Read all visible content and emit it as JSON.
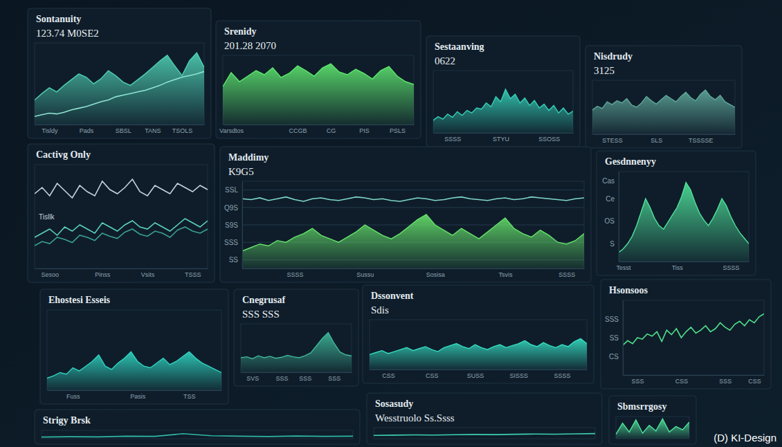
{
  "chart_data": [
    {
      "type": "area",
      "title": "Sontanuity",
      "subtitle": "123.74 M0SE2",
      "categories": [
        null,
        null,
        "Tisldy",
        null,
        null,
        null,
        null,
        "Pads",
        null,
        null,
        null,
        null,
        "SBSL",
        null,
        null,
        null,
        "TANS",
        null,
        null,
        null,
        "TSOLS",
        null,
        null,
        null
      ],
      "series": [
        {
          "type": "area",
          "color": "#4fd1b5",
          "values": [
            30,
            38,
            45,
            40,
            48,
            55,
            62,
            58,
            50,
            56,
            66,
            60,
            52,
            48,
            55,
            62,
            70,
            78,
            85,
            72,
            60,
            78,
            88,
            70
          ]
        },
        {
          "type": "line",
          "color": "#8fe3d3",
          "values": [
            10,
            12,
            14,
            13,
            15,
            18,
            20,
            22,
            25,
            28,
            30,
            34,
            36,
            38,
            40,
            42,
            45,
            48,
            52,
            55,
            58,
            60,
            62,
            65
          ]
        }
      ],
      "ylim": [
        0,
        100
      ],
      "tick_labels": "x"
    },
    {
      "type": "area",
      "title": "Srenidy",
      "subtitle": "201.28 2070",
      "categories": [
        null,
        "Varsdtos",
        null,
        null,
        null,
        null,
        null,
        null,
        null,
        "CCGB",
        null,
        null,
        null,
        "CG",
        null,
        null,
        null,
        "PIS",
        null,
        null,
        null,
        "PSLS",
        null,
        null
      ],
      "series": [
        {
          "color": "#5ee86f",
          "values": [
            55,
            75,
            62,
            70,
            78,
            72,
            82,
            68,
            74,
            85,
            78,
            70,
            82,
            88,
            76,
            72,
            80,
            74,
            66,
            78,
            84,
            70,
            62,
            58
          ]
        }
      ],
      "ylim": [
        0,
        100
      ],
      "tick_labels": "x"
    },
    {
      "type": "area",
      "title": "Sestaanving",
      "subtitle": "0622",
      "categories": [
        null,
        null,
        null,
        null,
        "SSSS",
        null,
        null,
        null,
        null,
        null,
        null,
        null,
        null,
        null,
        "STYU",
        null,
        null,
        null,
        null,
        null,
        null,
        null,
        null,
        null,
        "SSOSS",
        null,
        null,
        null,
        null,
        null
      ],
      "series": [
        {
          "color": "#35d0b8",
          "values": [
            20,
            26,
            22,
            30,
            25,
            34,
            28,
            36,
            32,
            40,
            38,
            48,
            42,
            58,
            50,
            70,
            55,
            62,
            48,
            56,
            44,
            52,
            40,
            46,
            36,
            44,
            32,
            40,
            30,
            35
          ]
        }
      ],
      "ylim": [
        0,
        100
      ],
      "tick_labels": "x"
    },
    {
      "type": "area",
      "title": "Nisdrudy",
      "subtitle": "3125",
      "categories": [
        null,
        null,
        null,
        null,
        "STESS",
        null,
        null,
        null,
        null,
        null,
        null,
        null,
        null,
        "SLS",
        null,
        null,
        null,
        null,
        null,
        null,
        null,
        null,
        "TSSSSE",
        null,
        null,
        null,
        null,
        null,
        null,
        null
      ],
      "series": [
        {
          "color": "#5fa89b",
          "values": [
            45,
            52,
            48,
            60,
            55,
            62,
            58,
            66,
            54,
            50,
            58,
            70,
            62,
            56,
            64,
            72,
            66,
            60,
            70,
            78,
            68,
            62,
            74,
            82,
            70,
            64,
            72,
            60,
            55,
            50
          ]
        }
      ],
      "ylim": [
        0,
        100
      ],
      "tick_labels": "x"
    },
    {
      "type": "line",
      "title": "Cactivg Only",
      "annotation": "Tisllk",
      "categories": [
        null,
        null,
        "Sesoo",
        null,
        null,
        null,
        null,
        null,
        null,
        "Pinss",
        null,
        null,
        null,
        null,
        null,
        "Vsits",
        null,
        null,
        null,
        null,
        null,
        "TSSS",
        null,
        null
      ],
      "series": [
        {
          "color": "#c7d3e0",
          "values": [
            72,
            78,
            70,
            82,
            75,
            68,
            80,
            74,
            70,
            84,
            76,
            72,
            78,
            86,
            74,
            70,
            80,
            76,
            72,
            82,
            78,
            74,
            80,
            76
          ]
        },
        {
          "color": "#5ad1c0",
          "values": [
            30,
            34,
            38,
            32,
            40,
            36,
            42,
            38,
            34,
            44,
            40,
            36,
            42,
            46,
            40,
            38,
            44,
            40,
            36,
            42,
            48,
            44,
            40,
            46
          ]
        },
        {
          "color": "#3b9f96",
          "values": [
            22,
            26,
            24,
            30,
            28,
            25,
            32,
            30,
            27,
            34,
            31,
            29,
            35,
            38,
            33,
            31,
            36,
            34,
            30,
            37,
            40,
            36,
            34,
            38
          ]
        }
      ],
      "ylim": [
        0,
        100
      ],
      "tick_labels": "x"
    },
    {
      "type": "area",
      "title": "Maddimy",
      "subtitle": "K9G5",
      "categories": [
        null,
        null,
        null,
        null,
        null,
        null,
        "SSSS",
        null,
        null,
        null,
        null,
        null,
        null,
        null,
        "Sussu",
        null,
        null,
        null,
        null,
        null,
        null,
        null,
        "Sosisa",
        null,
        null,
        null,
        null,
        null,
        null,
        null,
        "Tsvis",
        null,
        null,
        null,
        null,
        null,
        null,
        "SSSS",
        null,
        null
      ],
      "series": [
        {
          "type": "area",
          "color": "#66e36b",
          "values": [
            20,
            24,
            28,
            26,
            32,
            30,
            36,
            40,
            46,
            38,
            34,
            30,
            36,
            42,
            50,
            44,
            38,
            34,
            40,
            48,
            56,
            62,
            50,
            44,
            38,
            46,
            40,
            34,
            42,
            50,
            58,
            46,
            40,
            36,
            44,
            38,
            30,
            28,
            32,
            40
          ]
        },
        {
          "type": "line",
          "color": "#7fd9c9",
          "values": [
            80,
            79,
            81,
            78,
            80,
            82,
            79,
            77,
            80,
            81,
            79,
            78,
            80,
            82,
            81,
            79,
            80,
            78,
            77,
            79,
            81,
            80,
            78,
            79,
            81,
            82,
            80,
            79,
            78,
            80,
            81,
            79,
            80,
            82,
            81,
            80,
            79,
            78,
            80,
            81
          ]
        }
      ],
      "ylim": [
        0,
        100
      ],
      "yticks": [
        {
          "value": 10,
          "label": "SS"
        },
        {
          "value": 30,
          "label": "SSS"
        },
        {
          "value": 50,
          "label": "S9S"
        },
        {
          "value": 70,
          "label": "Q9S"
        },
        {
          "value": 90,
          "label": "SSL"
        }
      ],
      "grid": true
    },
    {
      "type": "area",
      "title": "Gesdnnenyy",
      "categories": [
        null,
        "Tesst",
        null,
        null,
        null,
        null,
        null,
        null,
        null,
        null,
        null,
        null,
        null,
        "Tiss",
        null,
        null,
        null,
        null,
        null,
        null,
        null,
        null,
        null,
        null,
        null,
        "SSSS",
        null,
        null,
        null,
        null
      ],
      "series": [
        {
          "color": "#4fe39b",
          "values": [
            10,
            14,
            20,
            28,
            40,
            55,
            70,
            60,
            48,
            40,
            36,
            44,
            52,
            60,
            72,
            88,
            80,
            66,
            54,
            46,
            40,
            48,
            58,
            70,
            62,
            50,
            40,
            32,
            26,
            20
          ]
        }
      ],
      "ylim": [
        0,
        100
      ],
      "yticks": [
        {
          "value": 20,
          "label": "S"
        },
        {
          "value": 45,
          "label": "OS"
        },
        {
          "value": 70,
          "label": "Ce"
        },
        {
          "value": 90,
          "label": "Cas"
        }
      ]
    },
    {
      "type": "area",
      "title": "Ehostesi Esseis",
      "categories": [
        null,
        null,
        null,
        null,
        "Fuss",
        null,
        null,
        null,
        null,
        null,
        null,
        null,
        null,
        null,
        "Pasis",
        null,
        null,
        null,
        null,
        null,
        null,
        null,
        "TSS",
        null,
        null,
        null,
        null,
        null
      ],
      "series": [
        {
          "color": "#2fd4c0",
          "values": [
            15,
            18,
            22,
            20,
            28,
            24,
            30,
            36,
            44,
            30,
            26,
            34,
            40,
            48,
            36,
            30,
            28,
            34,
            40,
            32,
            36,
            42,
            48,
            40,
            34,
            30,
            26,
            22
          ]
        }
      ],
      "ylim": [
        0,
        100
      ],
      "tick_labels": "x"
    },
    {
      "type": "area",
      "title": "Cnegrusaf",
      "subtitle": "SSS SSS",
      "categories": [
        null,
        null,
        "SVS",
        null,
        null,
        null,
        null,
        "SSS",
        null,
        null,
        null,
        "SSS",
        null,
        null,
        null,
        null,
        "SSS",
        null,
        null,
        null
      ],
      "series": [
        {
          "color": "#3fb89a",
          "values": [
            30,
            32,
            28,
            34,
            30,
            33,
            29,
            31,
            35,
            32,
            30,
            34,
            40,
            55,
            70,
            82,
            60,
            42,
            36,
            34
          ]
        }
      ],
      "ylim": [
        0,
        100
      ],
      "tick_labels": "x"
    },
    {
      "type": "area",
      "title": "Dssonvent",
      "subtitle": "Sdis",
      "categories": [
        null,
        null,
        null,
        "CSS",
        null,
        null,
        null,
        null,
        null,
        null,
        "CSS",
        null,
        null,
        null,
        null,
        null,
        null,
        "SUSS",
        null,
        null,
        null,
        null,
        null,
        null,
        "SISSS",
        null,
        null,
        null,
        null,
        null,
        null,
        "SSSS",
        null,
        null,
        null,
        null
      ],
      "series": [
        {
          "color": "#35dcc0",
          "values": [
            30,
            34,
            38,
            32,
            36,
            40,
            44,
            38,
            42,
            46,
            40,
            36,
            44,
            48,
            52,
            46,
            42,
            50,
            44,
            40,
            46,
            50,
            44,
            48,
            52,
            58,
            50,
            46,
            54,
            48,
            44,
            50,
            46,
            56,
            62,
            52
          ]
        }
      ],
      "ylim": [
        0,
        100
      ],
      "tick_labels": "x"
    },
    {
      "type": "line",
      "title": "Hsonsoos",
      "categories": [
        null,
        null,
        null,
        "SSS",
        null,
        null,
        null,
        null,
        null,
        null,
        null,
        null,
        "CSS",
        null,
        null,
        null,
        null,
        null,
        null,
        null,
        null,
        "SSS",
        null,
        null,
        null,
        null,
        null,
        "CSS",
        null,
        null
      ],
      "series": [
        {
          "color": "#4ee08a",
          "values": [
            40,
            46,
            42,
            50,
            48,
            55,
            52,
            58,
            45,
            60,
            54,
            62,
            50,
            58,
            64,
            56,
            60,
            66,
            58,
            62,
            70,
            64,
            60,
            68,
            72,
            66,
            74,
            70,
            78,
            82
          ]
        }
      ],
      "ylim": [
        0,
        100
      ],
      "yticks": [
        {
          "value": 25,
          "label": "CS"
        },
        {
          "value": 50,
          "label": "SS"
        },
        {
          "value": 75,
          "label": "SSS"
        }
      ]
    },
    {
      "type": "line",
      "title": "Strigy Brsk",
      "categories": [
        null,
        null,
        null,
        null,
        null,
        null,
        null,
        null,
        null,
        null,
        null,
        null
      ],
      "series": [
        {
          "color": "#2fb8a5",
          "values": [
            20,
            24,
            22,
            30,
            28,
            60,
            35,
            30,
            26,
            32,
            28,
            30
          ]
        }
      ],
      "ylim": [
        0,
        100
      ],
      "tick_labels": false
    },
    {
      "type": "line",
      "title": "Sosasudy",
      "subtitle": "Wesstruolo Ss.Ssss",
      "categories": [
        null,
        null,
        null,
        null,
        null,
        null,
        null,
        null,
        null,
        null,
        null,
        null
      ],
      "series": [
        {
          "color": "#3bd1b5",
          "values": [
            30,
            32,
            34,
            33,
            36,
            38,
            37,
            40,
            42,
            41,
            44,
            46
          ]
        }
      ],
      "ylim": [
        0,
        100
      ],
      "tick_labels": false
    },
    {
      "type": "area",
      "title": "Sbmsrrgosy",
      "categories": [
        null,
        null,
        null,
        null,
        null,
        null,
        null,
        null,
        null,
        null,
        null,
        null
      ],
      "series": [
        {
          "color": "#4fe39b",
          "values": [
            20,
            70,
            30,
            85,
            25,
            60,
            35,
            90,
            30,
            55,
            40,
            75
          ]
        }
      ],
      "ylim": [
        0,
        100
      ],
      "tick_labels": false
    }
  ],
  "watermark": "(D) KI-Design"
}
